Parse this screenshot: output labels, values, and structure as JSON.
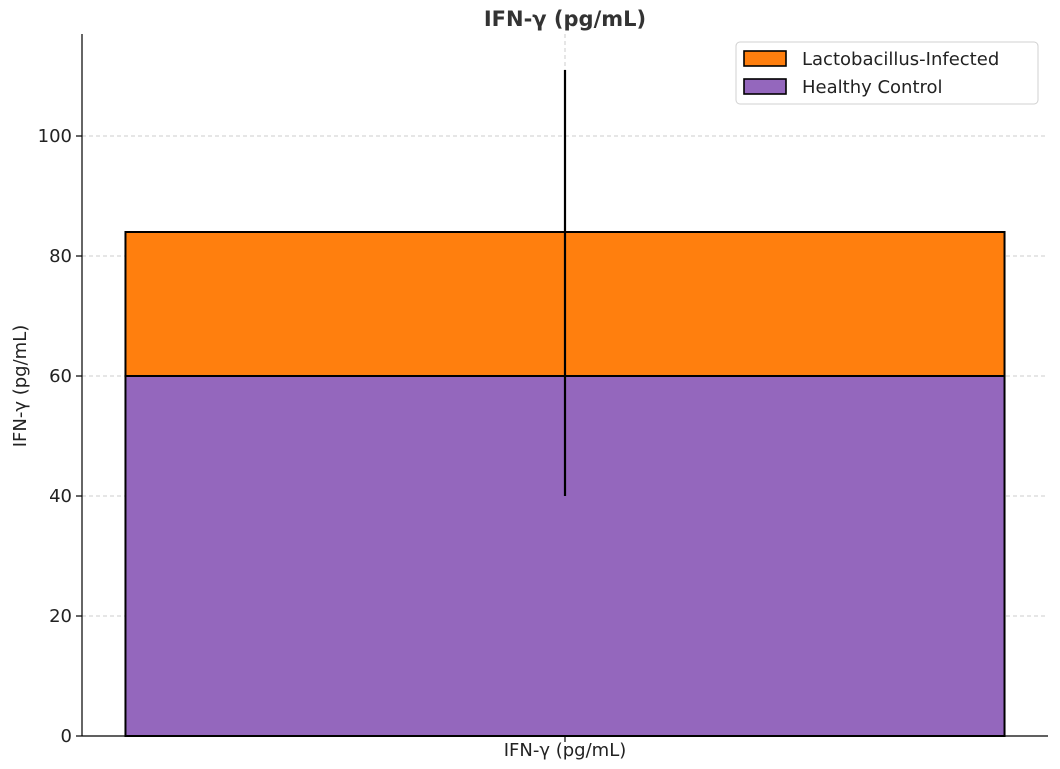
{
  "chart_data": {
    "type": "bar",
    "stacked": true,
    "title": "IFN-γ (pg/mL)",
    "xlabel": "",
    "ylabel": "IFN-γ (pg/mL)",
    "categories": [
      "IFN-γ (pg/mL)"
    ],
    "series": [
      {
        "name": "Healthy Control",
        "values": [
          60
        ],
        "color": "#9467bd"
      },
      {
        "name": "Lactobacillus-Infected",
        "values": [
          24
        ],
        "color": "#ff7f0e"
      }
    ],
    "error_bar": {
      "center": 84,
      "low": 40,
      "high": 111
    },
    "ylim": [
      0,
      117
    ],
    "yticks": [
      0,
      20,
      40,
      60,
      80,
      100
    ],
    "grid": true,
    "legend_position": "top-right",
    "legend_order": [
      "Lactobacillus-Infected",
      "Healthy Control"
    ]
  }
}
